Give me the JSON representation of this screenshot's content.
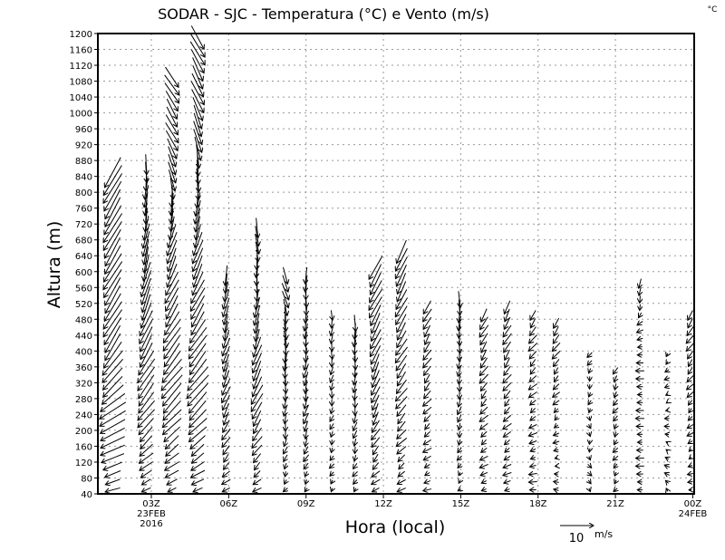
{
  "chart_data": {
    "type": "vector",
    "title": "SODAR - SJC - Temperatura (°C) e Vento (m/s)",
    "corner_unit": "°C",
    "xlabel": "Hora (local)",
    "ylabel": "Altura (m)",
    "xlim_hours": [
      0.95,
      24.1
    ],
    "ylim": [
      40,
      1200
    ],
    "yticks": [
      40,
      80,
      120,
      160,
      200,
      240,
      280,
      320,
      360,
      400,
      440,
      480,
      520,
      560,
      600,
      640,
      680,
      720,
      760,
      800,
      840,
      880,
      920,
      960,
      1000,
      1040,
      1080,
      1120,
      1160,
      1200
    ],
    "xticks": [
      {
        "hour": 3,
        "label": "03Z",
        "sub": [
          "23FEB",
          "2016"
        ]
      },
      {
        "hour": 6,
        "label": "06Z",
        "sub": []
      },
      {
        "hour": 9,
        "label": "09Z",
        "sub": []
      },
      {
        "hour": 12,
        "label": "12Z",
        "sub": []
      },
      {
        "hour": 15,
        "label": "15Z",
        "sub": []
      },
      {
        "hour": 18,
        "label": "18Z",
        "sub": []
      },
      {
        "hour": 21,
        "label": "21Z",
        "sub": []
      },
      {
        "hour": 24,
        "label": "00Z",
        "sub": [
          "24FEB"
        ]
      }
    ],
    "grid": true,
    "reference_vector": {
      "speed": 10,
      "label": "10",
      "unit": "m/s"
    },
    "level_step_m": 20,
    "columns": [
      {
        "hour": 1.5,
        "top": 860,
        "profile": [
          [
            40,
            -4,
            -1
          ],
          [
            200,
            -8,
            -4
          ],
          [
            400,
            -5,
            -8
          ],
          [
            860,
            -5,
            -9
          ]
        ]
      },
      {
        "hour": 2.8,
        "top": 880,
        "profile": [
          [
            40,
            -3,
            -1
          ],
          [
            300,
            -5,
            -7
          ],
          [
            600,
            -2,
            -8
          ],
          [
            880,
            0,
            -6
          ]
        ]
      },
      {
        "hour": 3.8,
        "top": 1100,
        "profile": [
          [
            40,
            -3,
            -1
          ],
          [
            300,
            -6,
            -7
          ],
          [
            700,
            -2,
            -7
          ],
          [
            900,
            3,
            -6
          ],
          [
            1100,
            4,
            -6
          ]
        ]
      },
      {
        "hour": 4.8,
        "top": 1200,
        "profile": [
          [
            40,
            -3,
            -1
          ],
          [
            300,
            -6,
            -7
          ],
          [
            700,
            -2,
            -7
          ],
          [
            1000,
            3,
            -7
          ],
          [
            1200,
            4,
            -7
          ]
        ]
      },
      {
        "hour": 5.9,
        "top": 600,
        "profile": [
          [
            40,
            -2,
            -1
          ],
          [
            300,
            -2,
            -5
          ],
          [
            600,
            -1,
            -6
          ]
        ]
      },
      {
        "hour": 7.1,
        "top": 720,
        "profile": [
          [
            40,
            -2,
            -1
          ],
          [
            300,
            -3,
            -6
          ],
          [
            720,
            1,
            -6
          ]
        ]
      },
      {
        "hour": 8.2,
        "top": 600,
        "profile": [
          [
            40,
            -1,
            -1
          ],
          [
            400,
            0,
            -5
          ],
          [
            600,
            2,
            -5
          ]
        ]
      },
      {
        "hour": 9.0,
        "top": 600,
        "profile": [
          [
            40,
            -1,
            -1
          ],
          [
            300,
            -1,
            -4
          ],
          [
            600,
            0,
            -5
          ]
        ]
      },
      {
        "hour": 10.0,
        "top": 500,
        "profile": [
          [
            40,
            -1,
            -1
          ],
          [
            500,
            0,
            -3
          ]
        ]
      },
      {
        "hour": 10.9,
        "top": 470,
        "profile": [
          [
            40,
            -1,
            -1
          ],
          [
            470,
            0,
            -5
          ]
        ]
      },
      {
        "hour": 11.7,
        "top": 620,
        "profile": [
          [
            40,
            -2,
            -1
          ],
          [
            300,
            -2,
            -5
          ],
          [
            620,
            -4,
            -7
          ]
        ]
      },
      {
        "hour": 12.7,
        "top": 660,
        "profile": [
          [
            40,
            -2,
            -1
          ],
          [
            300,
            -3,
            -4
          ],
          [
            660,
            -3,
            -7
          ]
        ]
      },
      {
        "hour": 13.7,
        "top": 520,
        "profile": [
          [
            40,
            -2,
            -0.5
          ],
          [
            520,
            -2,
            -4
          ]
        ]
      },
      {
        "hour": 14.95,
        "top": 540,
        "profile": [
          [
            40,
            -1,
            -0.5
          ],
          [
            540,
            0,
            -5
          ]
        ]
      },
      {
        "hour": 15.9,
        "top": 500,
        "profile": [
          [
            40,
            -2,
            -0.5
          ],
          [
            500,
            -2,
            -4
          ]
        ]
      },
      {
        "hour": 16.8,
        "top": 520,
        "profile": [
          [
            40,
            -2,
            -0.5
          ],
          [
            520,
            -2,
            -4
          ]
        ]
      },
      {
        "hour": 17.8,
        "top": 500,
        "profile": [
          [
            40,
            -2,
            0
          ],
          [
            500,
            -2,
            -3
          ]
        ]
      },
      {
        "hour": 18.7,
        "top": 470,
        "profile": [
          [
            40,
            -1,
            0.5
          ],
          [
            470,
            -2,
            -3
          ]
        ]
      },
      {
        "hour": 20.0,
        "top": 400,
        "profile": [
          [
            40,
            1,
            -1
          ],
          [
            400,
            -1,
            -1.5
          ]
        ]
      },
      {
        "hour": 21.0,
        "top": 360,
        "profile": [
          [
            40,
            -1,
            -1
          ],
          [
            360,
            -1,
            -2
          ]
        ]
      },
      {
        "hour": 21.95,
        "top": 580,
        "profile": [
          [
            40,
            -2,
            0
          ],
          [
            400,
            -2,
            0
          ],
          [
            580,
            0,
            -3
          ]
        ]
      },
      {
        "hour": 23.0,
        "top": 400,
        "profile": [
          [
            40,
            -1,
            1
          ],
          [
            400,
            -1,
            -1
          ]
        ]
      },
      {
        "hour": 23.9,
        "top": 500,
        "profile": [
          [
            40,
            -1,
            0
          ],
          [
            500,
            -2,
            -3
          ]
        ]
      }
    ]
  }
}
